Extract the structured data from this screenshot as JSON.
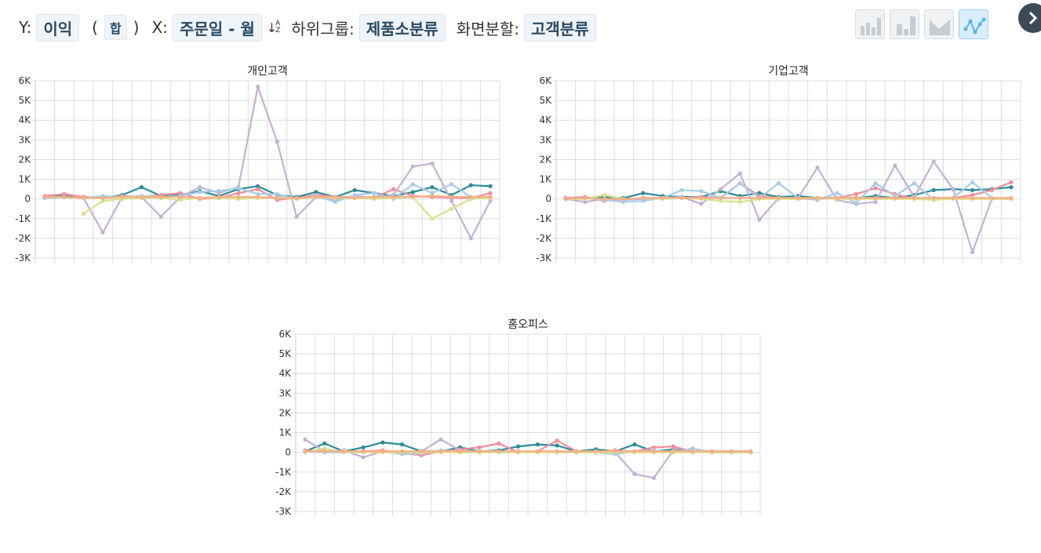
{
  "toolbar": {
    "y_label": "Y:",
    "y_value": "이익",
    "agg_open": "(",
    "agg_value": "합",
    "agg_close": ")",
    "x_label": "X:",
    "x_value": "주문일 - 월",
    "subgroup_label": "하위그룹:",
    "subgroup_value": "제품소분류",
    "split_label": "화면분할:",
    "split_value": "고객분류"
  },
  "chart_type_buttons": [
    {
      "name": "bar-chart-icon",
      "active": false
    },
    {
      "name": "stacked-bar-chart-icon",
      "active": false
    },
    {
      "name": "area-chart-icon",
      "active": false
    },
    {
      "name": "line-chart-icon",
      "active": true
    }
  ],
  "colors": {
    "teal": "#2e8b99",
    "pink": "#f08d9a",
    "lavender": "#c3b1d6",
    "lightblue": "#a9cbe6",
    "yellowgreen": "#dbe08f",
    "orange": "#f4b183"
  },
  "chart_data": [
    {
      "type": "line",
      "title": "개인고객",
      "ylim": [
        -3000,
        6000
      ],
      "y_ticks": [
        "6K",
        "5K",
        "4K",
        "3K",
        "2K",
        "1K",
        "0",
        "-1K",
        "-2K",
        "-3K"
      ],
      "y_tick_values": [
        6000,
        5000,
        4000,
        3000,
        2000,
        1000,
        0,
        -1000,
        -2000,
        -3000
      ],
      "n_points": 24,
      "grid": true,
      "series": [
        {
          "color": "#2e8b99",
          "values": [
            100,
            150,
            100,
            50,
            200,
            600,
            150,
            200,
            400,
            150,
            500,
            650,
            200,
            100,
            350,
            100,
            450,
            300,
            150,
            350,
            600,
            200,
            700,
            650
          ]
        },
        {
          "color": "#f08d9a",
          "values": [
            150,
            250,
            100,
            50,
            150,
            100,
            200,
            300,
            0,
            50,
            300,
            500,
            -50,
            50,
            200,
            100,
            100,
            50,
            500,
            150,
            100,
            50,
            50,
            300
          ]
        },
        {
          "color": "#c3b1d6",
          "values": [
            50,
            100,
            50,
            -1700,
            100,
            100,
            -900,
            100,
            600,
            300,
            600,
            5700,
            2900,
            -900,
            100,
            -50,
            150,
            50,
            200,
            1650,
            1800,
            -100,
            -2000,
            -100
          ]
        },
        {
          "color": "#a9cbe6",
          "values": [
            50,
            100,
            50,
            150,
            100,
            150,
            100,
            150,
            350,
            400,
            550,
            250,
            250,
            0,
            150,
            -150,
            200,
            300,
            0,
            750,
            300,
            750,
            100,
            50
          ]
        },
        {
          "color": "#dbe08f",
          "values": [
            null,
            null,
            -750,
            -100,
            0,
            50,
            50,
            -50,
            50,
            50,
            0,
            50,
            50,
            0,
            100,
            50,
            50,
            0,
            50,
            100,
            -1000,
            -500,
            0,
            50
          ]
        },
        {
          "color": "#f4b183",
          "values": [
            100,
            100,
            50,
            50,
            100,
            100,
            100,
            100,
            50,
            100,
            100,
            100,
            50,
            50,
            100,
            100,
            50,
            100,
            100,
            100,
            150,
            100,
            100,
            100
          ]
        }
      ]
    },
    {
      "type": "line",
      "title": "기업고객",
      "ylim": [
        -3000,
        6000
      ],
      "y_ticks": [
        "6K",
        "5K",
        "4K",
        "3K",
        "2K",
        "1K",
        "0",
        "-1K",
        "-2K",
        "-3K"
      ],
      "y_tick_values": [
        6000,
        5000,
        4000,
        3000,
        2000,
        1000,
        0,
        -1000,
        -2000,
        -3000
      ],
      "n_points": 24,
      "grid": true,
      "series": [
        {
          "color": "#2e8b99",
          "values": [
            50,
            50,
            100,
            50,
            300,
            150,
            100,
            100,
            400,
            150,
            300,
            100,
            150,
            50,
            50,
            50,
            150,
            50,
            200,
            450,
            500,
            450,
            500,
            600
          ]
        },
        {
          "color": "#f08d9a",
          "values": [
            50,
            100,
            -100,
            0,
            50,
            50,
            50,
            100,
            50,
            800,
            150,
            50,
            0,
            0,
            50,
            250,
            550,
            250,
            0,
            50,
            50,
            200,
            450,
            850
          ]
        },
        {
          "color": "#c3b1d6",
          "values": [
            0,
            -150,
            0,
            -50,
            0,
            50,
            100,
            -250,
            500,
            1300,
            -1050,
            50,
            50,
            1600,
            -50,
            -250,
            -150,
            1700,
            100,
            1900,
            500,
            -2700,
            0,
            0
          ]
        },
        {
          "color": "#a9cbe6",
          "values": [
            0,
            50,
            -50,
            -150,
            -100,
            50,
            450,
            400,
            50,
            800,
            50,
            800,
            50,
            -50,
            300,
            -200,
            800,
            150,
            800,
            -50,
            50,
            850,
            50,
            50
          ]
        },
        {
          "color": "#dbe08f",
          "values": [
            0,
            0,
            200,
            0,
            50,
            0,
            50,
            0,
            -100,
            -150,
            0,
            0,
            0,
            50,
            0,
            0,
            0,
            0,
            0,
            -50,
            0,
            0,
            0,
            0
          ]
        },
        {
          "color": "#f4b183",
          "values": [
            0,
            50,
            0,
            0,
            50,
            50,
            50,
            50,
            50,
            50,
            50,
            50,
            50,
            50,
            50,
            50,
            50,
            50,
            50,
            50,
            50,
            50,
            50,
            50
          ]
        }
      ]
    },
    {
      "type": "line",
      "title": "홈오피스",
      "ylim": [
        -3000,
        6000
      ],
      "y_ticks": [
        "6K",
        "5K",
        "4K",
        "3K",
        "2K",
        "1K",
        "0",
        "-1K",
        "-2K",
        "-3K"
      ],
      "y_tick_values": [
        6000,
        5000,
        4000,
        3000,
        2000,
        1000,
        0,
        -1000,
        -2000,
        -3000
      ],
      "n_points": 24,
      "grid": true,
      "series": [
        {
          "color": "#2e8b99",
          "values": [
            50,
            450,
            50,
            250,
            500,
            400,
            50,
            50,
            250,
            50,
            100,
            300,
            400,
            350,
            50,
            150,
            50,
            400,
            50,
            150,
            50,
            50,
            50,
            50
          ]
        },
        {
          "color": "#f08d9a",
          "values": [
            100,
            50,
            50,
            50,
            100,
            -50,
            -150,
            50,
            150,
            250,
            450,
            0,
            50,
            600,
            50,
            0,
            100,
            50,
            250,
            300,
            50,
            0,
            0,
            0
          ]
        },
        {
          "color": "#c3b1d6",
          "values": [
            650,
            50,
            100,
            -250,
            50,
            0,
            50,
            650,
            100,
            50,
            50,
            50,
            50,
            50,
            0,
            50,
            0,
            -1100,
            -1300,
            100,
            50,
            0,
            0,
            0
          ]
        },
        {
          "color": "#a9cbe6",
          "values": [
            50,
            0,
            0,
            0,
            50,
            -100,
            -50,
            100,
            50,
            50,
            50,
            50,
            0,
            0,
            0,
            0,
            -100,
            50,
            100,
            0,
            200,
            0,
            0,
            0
          ]
        },
        {
          "color": "#dbe08f",
          "values": [
            0,
            200,
            0,
            0,
            0,
            0,
            0,
            0,
            0,
            0,
            0,
            0,
            0,
            0,
            0,
            0,
            0,
            0,
            0,
            0,
            0,
            0,
            0,
            0
          ]
        },
        {
          "color": "#f4b183",
          "values": [
            50,
            50,
            50,
            50,
            50,
            50,
            50,
            50,
            50,
            50,
            50,
            50,
            50,
            50,
            50,
            50,
            50,
            50,
            50,
            50,
            50,
            50,
            50,
            50
          ]
        }
      ]
    }
  ]
}
